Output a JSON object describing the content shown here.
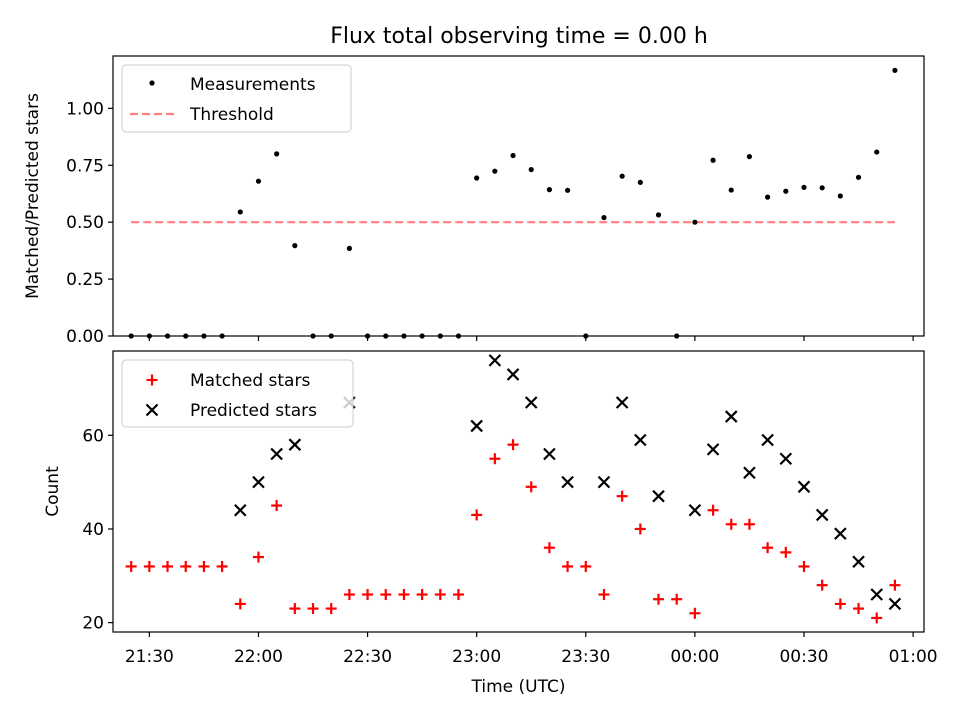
{
  "title": "Flux total observing time = 0.00 h",
  "colors": {
    "matched": "#ff0000",
    "predicted": "#000000",
    "threshold": "#ff7f7f",
    "measure": "#000000"
  },
  "chart_data": [
    {
      "type": "scatter",
      "ylabel": "Matched/Predicted stars",
      "ylim": [
        0,
        1.23
      ],
      "yticks": [
        0.0,
        0.25,
        0.5,
        0.75,
        1.0
      ],
      "ytick_labels": [
        "0.00",
        "0.25",
        "0.50",
        "0.75",
        "1.00"
      ],
      "legend": {
        "placement": "top-left",
        "entries": [
          "Measurements",
          "Threshold"
        ]
      },
      "series": [
        {
          "name": "Measurements",
          "kind": "points",
          "x": [
            "21:25",
            "21:30",
            "21:35",
            "21:40",
            "21:45",
            "21:50",
            "21:55",
            "22:00",
            "22:05",
            "22:10",
            "22:15",
            "22:20",
            "22:25",
            "22:30",
            "22:35",
            "22:40",
            "22:45",
            "22:50",
            "22:55",
            "23:00",
            "23:05",
            "23:10",
            "23:15",
            "23:20",
            "23:25",
            "23:30",
            "23:35",
            "23:40",
            "23:45",
            "23:50",
            "23:55",
            "00:00",
            "00:05",
            "00:10",
            "00:15",
            "00:20",
            "00:25",
            "00:30",
            "00:35",
            "00:40",
            "00:45",
            "00:50",
            "00:55"
          ],
          "y": [
            0,
            0,
            0,
            0,
            0,
            0,
            0.545,
            0.68,
            0.8,
            0.397,
            0,
            0,
            0.385,
            0,
            0,
            0,
            0,
            0,
            0,
            0.694,
            0.724,
            0.793,
            0.731,
            0.643,
            0.64,
            0,
            0.52,
            0.702,
            0.675,
            0.532,
            0,
            0.5,
            0.772,
            0.641,
            0.788,
            0.61,
            0.636,
            0.653,
            0.651,
            0.615,
            0.697,
            0.808,
            1.167
          ]
        },
        {
          "name": "Threshold",
          "kind": "line",
          "x": [
            "21:25",
            "00:55"
          ],
          "y": [
            0.5,
            0.5
          ]
        }
      ]
    },
    {
      "type": "scatter",
      "xlabel": "Time (UTC)",
      "ylabel": "Count",
      "ylim": [
        18,
        78
      ],
      "yticks": [
        20,
        40,
        60
      ],
      "xlim": [
        "21:20",
        "01:03"
      ],
      "xticks": [
        "21:30",
        "22:00",
        "22:30",
        "23:00",
        "23:30",
        "00:00",
        "00:30",
        "01:00"
      ],
      "legend": {
        "placement": "top-left",
        "entries": [
          "Matched stars",
          "Predicted stars"
        ]
      },
      "series": [
        {
          "name": "Matched stars",
          "marker": "+",
          "x": [
            "21:25",
            "21:30",
            "21:35",
            "21:40",
            "21:45",
            "21:50",
            "21:55",
            "22:00",
            "22:05",
            "22:10",
            "22:15",
            "22:20",
            "22:25",
            "22:30",
            "22:35",
            "22:40",
            "22:45",
            "22:50",
            "22:55",
            "23:00",
            "23:05",
            "23:10",
            "23:15",
            "23:20",
            "23:25",
            "23:30",
            "23:35",
            "23:40",
            "23:45",
            "23:50",
            "23:55",
            "00:00",
            "00:05",
            "00:10",
            "00:15",
            "00:20",
            "00:25",
            "00:30",
            "00:35",
            "00:40",
            "00:45",
            "00:50",
            "00:55"
          ],
          "y": [
            32,
            32,
            32,
            32,
            32,
            32,
            24,
            34,
            45,
            23,
            23,
            23,
            26,
            26,
            26,
            26,
            26,
            26,
            26,
            43,
            55,
            58,
            49,
            36,
            32,
            32,
            26,
            47,
            40,
            25,
            25,
            22,
            44,
            41,
            41,
            36,
            35,
            32,
            28,
            24,
            23,
            21,
            28
          ]
        },
        {
          "name": "Predicted stars",
          "marker": "x",
          "x": [
            "21:55",
            "22:00",
            "22:05",
            "22:10",
            "22:25",
            "23:00",
            "23:05",
            "23:10",
            "23:15",
            "23:20",
            "23:25",
            "23:35",
            "23:40",
            "23:45",
            "23:50",
            "00:00",
            "00:05",
            "00:10",
            "00:15",
            "00:20",
            "00:25",
            "00:30",
            "00:35",
            "00:40",
            "00:45",
            "00:50",
            "00:55"
          ],
          "y": [
            44,
            50,
            56,
            58,
            67,
            62,
            76,
            73,
            67,
            56,
            50,
            50,
            67,
            59,
            47,
            44,
            57,
            64,
            52,
            59,
            55,
            49,
            43,
            39,
            33,
            26,
            24
          ]
        }
      ]
    }
  ]
}
